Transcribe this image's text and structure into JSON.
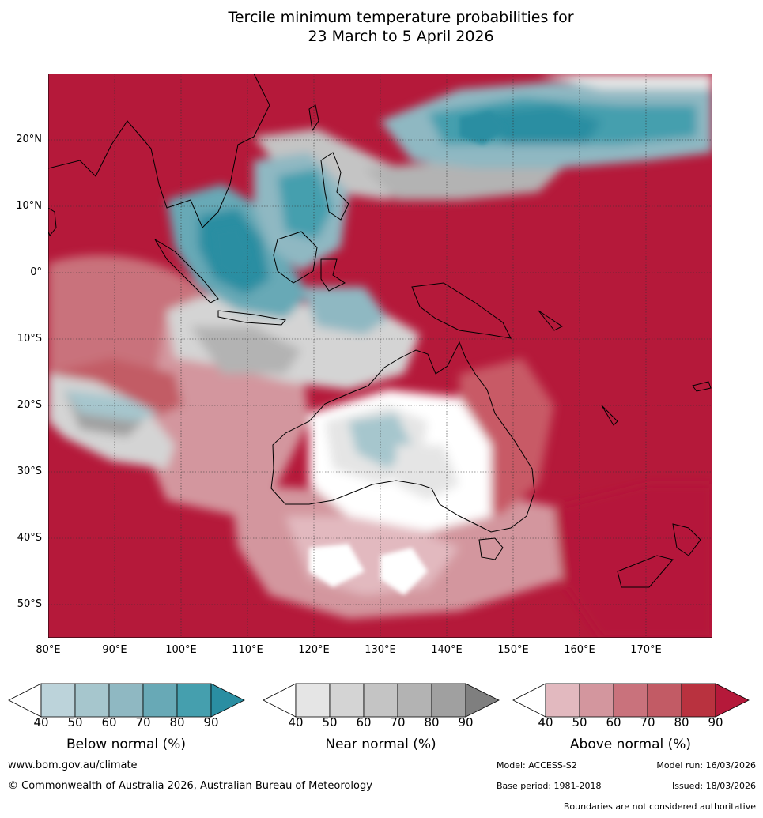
{
  "title": {
    "line1": "Tercile minimum temperature probabilities for",
    "line2": "23 March to 5 April 2026"
  },
  "map": {
    "lat_labels": [
      "20°N",
      "10°N",
      "0°",
      "10°S",
      "20°S",
      "30°S",
      "40°S",
      "50°S"
    ],
    "lon_labels": [
      "80°E",
      "90°E",
      "100°E",
      "110°E",
      "120°E",
      "130°E",
      "140°E",
      "150°E",
      "160°E",
      "170°E"
    ],
    "extent": {
      "lon_min": 80,
      "lon_max": 180,
      "lat_min": -55,
      "lat_max": 30
    },
    "colors": {
      "above_high": "#b5193a",
      "above_mid": "#c85a66",
      "above_low": "#e0b7bd",
      "near": "#d9d9d9",
      "near_dark": "#a8a8a8",
      "below": "#4aa0b3",
      "below_dark": "#2a8ea2",
      "land_outline": "#000000"
    }
  },
  "colorbars": [
    {
      "title": "Below normal (%)",
      "ticks": [
        "40",
        "50",
        "60",
        "70",
        "80",
        "90"
      ],
      "colors": [
        "#ffffff",
        "#bcd3da",
        "#a6c6cd",
        "#8fb8c2",
        "#68a9b6",
        "#459fae",
        "#2a8ea2"
      ]
    },
    {
      "title": "Near normal (%)",
      "ticks": [
        "40",
        "50",
        "60",
        "70",
        "80",
        "90"
      ],
      "colors": [
        "#ffffff",
        "#e5e5e5",
        "#d4d4d4",
        "#c4c4c4",
        "#b3b3b3",
        "#a0a0a0",
        "#7f7f7f"
      ]
    },
    {
      "title": "Above normal (%)",
      "ticks": [
        "40",
        "50",
        "60",
        "70",
        "80",
        "90"
      ],
      "colors": [
        "#ffffff",
        "#e2b9bf",
        "#d3969e",
        "#c9727c",
        "#c25b65",
        "#b9323f",
        "#b5193a"
      ]
    }
  ],
  "footer": {
    "website": "www.bom.gov.au/climate",
    "copyright": "© Commonwealth of Australia 2026, Australian Bureau of Meteorology",
    "model": "Model: ACCESS-S2",
    "model_run": "Model run: 16/03/2026",
    "base_period": "Base period: 1981-2018",
    "issued": "Issued: 18/03/2026",
    "disclaimer": "Boundaries are not considered authoritative"
  }
}
